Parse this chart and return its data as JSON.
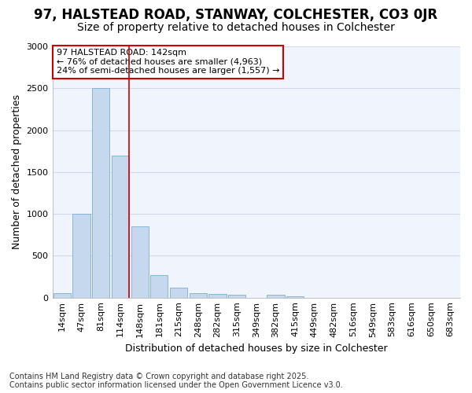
{
  "title1": "97, HALSTEAD ROAD, STANWAY, COLCHESTER, CO3 0JR",
  "title2": "Size of property relative to detached houses in Colchester",
  "xlabel": "Distribution of detached houses by size in Colchester",
  "ylabel": "Number of detached properties",
  "categories": [
    "14sqm",
    "47sqm",
    "81sqm",
    "114sqm",
    "148sqm",
    "181sqm",
    "215sqm",
    "248sqm",
    "282sqm",
    "315sqm",
    "349sqm",
    "382sqm",
    "415sqm",
    "449sqm",
    "482sqm",
    "516sqm",
    "549sqm",
    "583sqm",
    "616sqm",
    "650sqm",
    "683sqm"
  ],
  "values": [
    50,
    1000,
    2500,
    1700,
    850,
    270,
    120,
    55,
    40,
    30,
    0,
    30,
    20,
    0,
    0,
    0,
    0,
    0,
    0,
    0,
    0
  ],
  "bar_color": "#c5d8ee",
  "bar_edge_color": "#7aafd4",
  "vline_x_index": 3,
  "vline_color": "#cc0000",
  "ylim": [
    0,
    3000
  ],
  "yticks": [
    0,
    500,
    1000,
    1500,
    2000,
    2500,
    3000
  ],
  "annotation_text": "97 HALSTEAD ROAD: 142sqm\n← 76% of detached houses are smaller (4,963)\n24% of semi-detached houses are larger (1,557) →",
  "annotation_border_color": "#cc0000",
  "footnote1": "Contains HM Land Registry data © Crown copyright and database right 2025.",
  "footnote2": "Contains public sector information licensed under the Open Government Licence v3.0.",
  "bg_color": "#ffffff",
  "plot_bg_color": "#f0f4fc",
  "grid_color": "#d0daea",
  "title_fontsize": 12,
  "subtitle_fontsize": 10,
  "tick_fontsize": 8,
  "label_fontsize": 9,
  "footnote_fontsize": 7
}
